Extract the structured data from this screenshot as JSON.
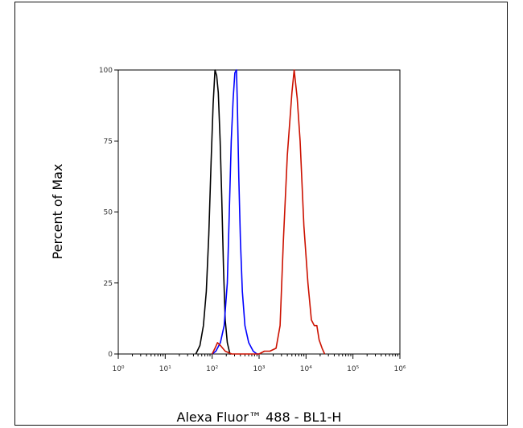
{
  "chart_data": {
    "type": "line",
    "title": "",
    "xlabel": "Alexa Fluor™ 488 - BL1-H",
    "ylabel": "Percent of Max",
    "x_scale": "log",
    "xlim": [
      1,
      1000000
    ],
    "ylim": [
      0,
      100
    ],
    "x_tick_labels": [
      "10⁰",
      "10¹",
      "10²",
      "10³",
      "10⁴",
      "10⁵",
      "10⁶"
    ],
    "x_tick_values": [
      1,
      10,
      100,
      1000,
      10000,
      100000,
      1000000
    ],
    "y_tick_labels": [
      "0",
      "25",
      "50",
      "75",
      "100"
    ],
    "y_tick_values": [
      0,
      25,
      50,
      75,
      100
    ],
    "grid": false,
    "legend": "none",
    "series": [
      {
        "color": "#000000",
        "points": [
          [
            45,
            0
          ],
          [
            55,
            3
          ],
          [
            65,
            10
          ],
          [
            75,
            22
          ],
          [
            85,
            42
          ],
          [
            95,
            68
          ],
          [
            105,
            88
          ],
          [
            115,
            100
          ],
          [
            125,
            98
          ],
          [
            135,
            92
          ],
          [
            148,
            75
          ],
          [
            160,
            55
          ],
          [
            175,
            30
          ],
          [
            190,
            12
          ],
          [
            210,
            4
          ],
          [
            240,
            0
          ],
          [
            250,
            0
          ]
        ]
      },
      {
        "color": "#0000ff",
        "points": [
          [
            100,
            0
          ],
          [
            120,
            1
          ],
          [
            150,
            4
          ],
          [
            180,
            10
          ],
          [
            210,
            25
          ],
          [
            230,
            48
          ],
          [
            255,
            75
          ],
          [
            280,
            90
          ],
          [
            305,
            99
          ],
          [
            330,
            100
          ],
          [
            345,
            88
          ],
          [
            370,
            62
          ],
          [
            400,
            40
          ],
          [
            440,
            22
          ],
          [
            500,
            10
          ],
          [
            600,
            4
          ],
          [
            750,
            1
          ],
          [
            900,
            0
          ],
          [
            1000,
            0
          ]
        ]
      },
      {
        "color": "#cc1100",
        "points": [
          [
            100,
            0
          ],
          [
            115,
            2
          ],
          [
            130,
            4
          ],
          [
            150,
            3
          ],
          [
            190,
            1
          ],
          [
            260,
            0
          ],
          [
            1000,
            0
          ],
          [
            1300,
            1
          ],
          [
            1700,
            1
          ],
          [
            2300,
            2
          ],
          [
            2800,
            10
          ],
          [
            3300,
            40
          ],
          [
            4000,
            70
          ],
          [
            5000,
            92
          ],
          [
            5600,
            100
          ],
          [
            6500,
            90
          ],
          [
            7500,
            75
          ],
          [
            9000,
            45
          ],
          [
            11000,
            25
          ],
          [
            13000,
            12
          ],
          [
            15000,
            10
          ],
          [
            17000,
            10
          ],
          [
            19000,
            5
          ],
          [
            22000,
            2
          ],
          [
            25000,
            0
          ]
        ]
      }
    ]
  }
}
